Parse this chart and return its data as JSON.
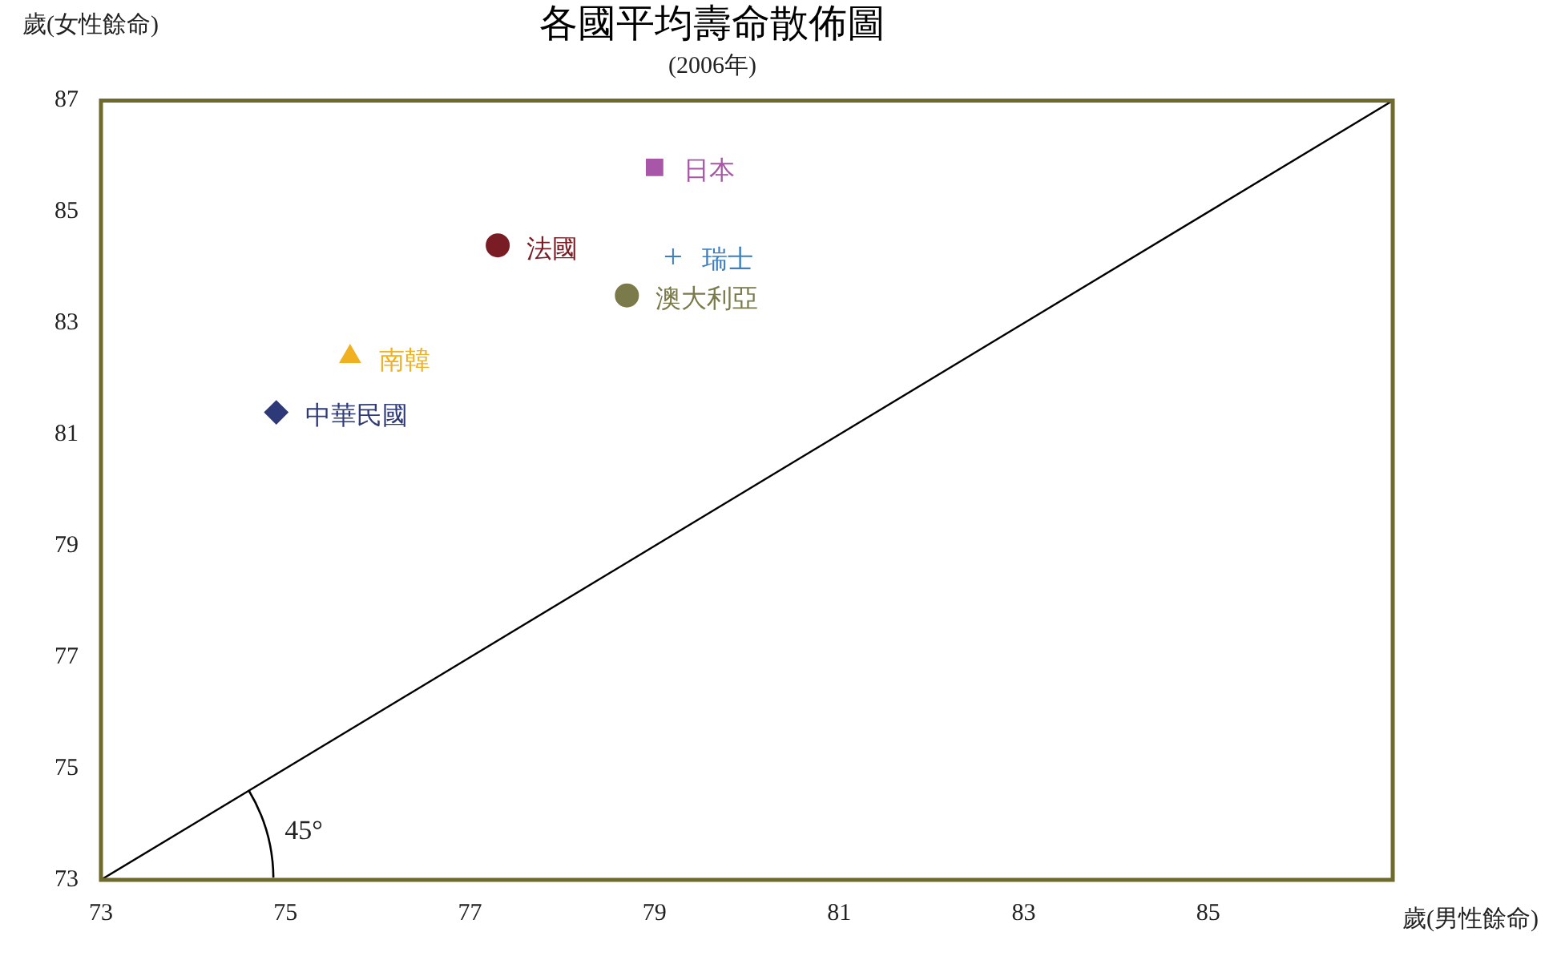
{
  "chart_data": {
    "type": "scatter",
    "title": "各國平均壽命散佈圖",
    "subtitle": "(2006年)",
    "xlabel": "歲(男性餘命)",
    "ylabel": "歲(女性餘命)",
    "annotations": [
      {
        "text": "45°",
        "x": 74.6,
        "y": 74.6
      }
    ],
    "xlim": [
      73,
      87
    ],
    "xticks": [
      73,
      75,
      77,
      79,
      81,
      83,
      85
    ],
    "ylim": [
      73,
      87
    ],
    "yticks": [
      73,
      75,
      77,
      79,
      81,
      83,
      85,
      87
    ],
    "grid": false,
    "legend": false,
    "series": [
      {
        "name": "日本",
        "color": "#a857a8",
        "marker": "square",
        "x": [
          79.0
        ],
        "values": [
          85.8
        ]
      },
      {
        "name": "法國",
        "color": "#7a1c24",
        "marker": "circle",
        "x": [
          77.3
        ],
        "values": [
          84.4
        ]
      },
      {
        "name": "瑞士",
        "color": "#3c7fc0",
        "marker": "cross",
        "x": [
          79.2
        ],
        "values": [
          84.2
        ]
      },
      {
        "name": "澳大利亞",
        "color": "#7a7a4a",
        "marker": "circle",
        "x": [
          78.7
        ],
        "values": [
          83.5
        ]
      },
      {
        "name": "南韓",
        "color": "#f0b020",
        "marker": "triangle",
        "x": [
          75.7
        ],
        "values": [
          82.4
        ]
      },
      {
        "name": "中華民國",
        "color": "#2e3a78",
        "marker": "diamond",
        "x": [
          74.9
        ],
        "values": [
          81.4
        ]
      },
      {
        "type": "line",
        "color": "#000000",
        "marker": "none",
        "x": [
          73,
          87
        ],
        "values": [
          73,
          87
        ]
      }
    ]
  }
}
